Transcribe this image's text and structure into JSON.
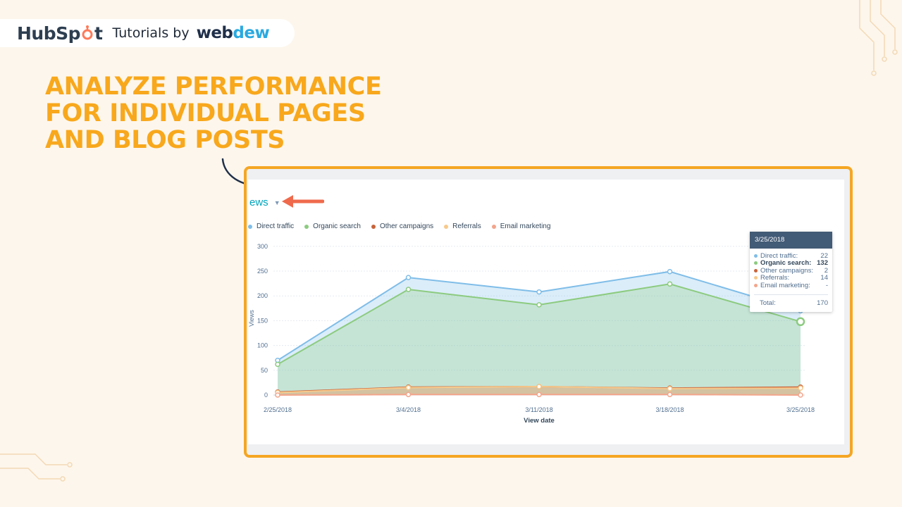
{
  "brand": {
    "hubspot": {
      "pre": "HubSp",
      "post": "t"
    },
    "tutorials_by": "Tutorials by",
    "webdew": {
      "pre": "web",
      "accent": "dew"
    }
  },
  "headline": [
    "ANALYZE PERFORMANCE",
    "FOR INDIVIDUAL PAGES",
    "AND BLOG POSTS"
  ],
  "metric_select": {
    "label": "ews"
  },
  "colors": {
    "accent_orange": "#f5a623",
    "headline": "#f8a81c",
    "red_arrow": "#ef6a4c",
    "navy_arrow": "#1f2f4a",
    "direct": "#7fbde8",
    "organic": "#8ccb7f",
    "other": "#c8633a",
    "referrals": "#f7c98b",
    "email": "#f3a58b"
  },
  "chart_data": {
    "type": "area",
    "xlabel": "View date",
    "ylabel": "Views",
    "ylim": [
      0,
      300
    ],
    "yticks": [
      0,
      50,
      100,
      150,
      200,
      250,
      300
    ],
    "x": [
      "2/25/2018",
      "3/4/2018",
      "3/11/2018",
      "3/18/2018",
      "3/25/2018"
    ],
    "grid": true,
    "legend": "top-left",
    "series": [
      {
        "name": "Direct traffic",
        "color": "#7fbde8",
        "total": [
          70,
          237,
          208,
          249,
          170
        ]
      },
      {
        "name": "Organic search",
        "color": "#8ccb7f",
        "total": [
          62,
          213,
          182,
          224,
          148
        ]
      },
      {
        "name": "Other campaigns",
        "color": "#c8633a",
        "total": [
          6,
          16,
          17,
          14,
          16
        ]
      },
      {
        "name": "Referrals",
        "color": "#f7c98b",
        "total": [
          5,
          15,
          17,
          13,
          14
        ]
      },
      {
        "name": "Email marketing",
        "color": "#f3a58b",
        "total": [
          0,
          1,
          1,
          1,
          0
        ]
      }
    ],
    "tooltip": {
      "date": "3/25/2018",
      "rows": [
        {
          "label": "Direct traffic:",
          "value": "22",
          "color": "#7fbde8",
          "bold": false
        },
        {
          "label": "Organic search:",
          "value": "132",
          "color": "#8ccb7f",
          "bold": true
        },
        {
          "label": "Other campaigns:",
          "value": "2",
          "color": "#c8633a",
          "bold": false
        },
        {
          "label": "Referrals:",
          "value": "14",
          "color": "#f7c98b",
          "bold": false
        },
        {
          "label": "Email marketing:",
          "value": "-",
          "color": "#f3a58b",
          "bold": false
        }
      ],
      "total_label": "Total:",
      "total_value": "170"
    }
  }
}
